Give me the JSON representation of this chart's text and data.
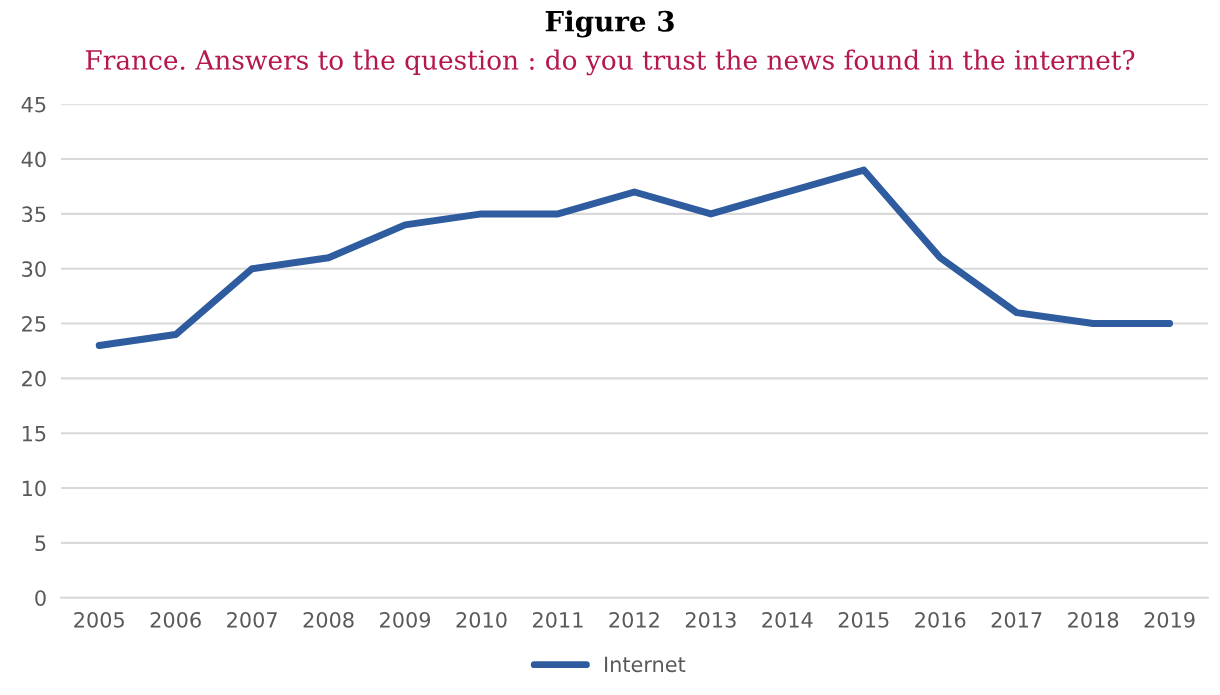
{
  "chart_data": {
    "type": "line",
    "title": "Figure 3",
    "subtitle": "France. Answers to the question : do you trust the news found in the internet?",
    "categories": [
      "2005",
      "2006",
      "2007",
      "2008",
      "2009",
      "2010",
      "2011",
      "2012",
      "2013",
      "2014",
      "2015",
      "2016",
      "2017",
      "2018",
      "2019"
    ],
    "series": [
      {
        "name": "Internet",
        "color": "#2f5b9f",
        "values": [
          23,
          24,
          30,
          31,
          34,
          35,
          35,
          37,
          35,
          37,
          39,
          31,
          26,
          25,
          25
        ]
      }
    ],
    "ylim": [
      0,
      45
    ],
    "yticks": [
      0,
      5,
      10,
      15,
      20,
      25,
      30,
      35,
      40,
      45
    ],
    "grid": "y",
    "legend": "bottom",
    "marker": "none",
    "line_style": "solid"
  }
}
